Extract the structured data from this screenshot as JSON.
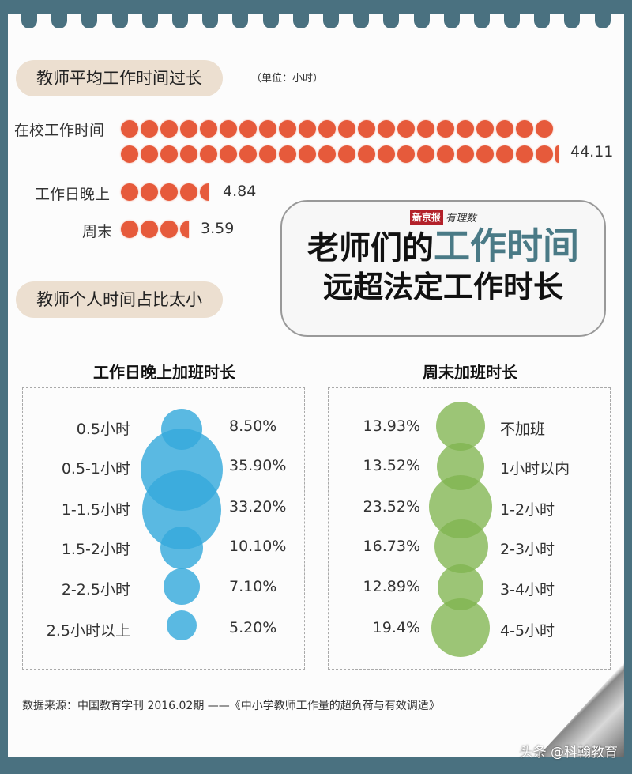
{
  "section1": {
    "pill": "教师平均工作时间过长",
    "unit": "（单位：小时）",
    "rows": [
      {
        "label": "在校工作时间",
        "value": "44.11"
      },
      {
        "label": "工作日晚上",
        "value": "4.84"
      },
      {
        "label": "周末",
        "value": "3.59"
      }
    ]
  },
  "section2": {
    "pill": "教师个人时间占比太小"
  },
  "title_card": {
    "brand_box": "新京报",
    "brand_text": "有理数",
    "line1_prefix": "老师们的",
    "line1_highlight": "工作时间",
    "line2": "远超法定工作时长"
  },
  "left_chart": {
    "title": "工作日晚上加班时长",
    "rows": [
      {
        "label": "0.5小时",
        "value": "8.50%"
      },
      {
        "label": "0.5-1小时",
        "value": "35.90%"
      },
      {
        "label": "1-1.5小时",
        "value": "33.20%"
      },
      {
        "label": "1.5-2小时",
        "value": "10.10%"
      },
      {
        "label": "2-2.5小时",
        "value": "7.10%"
      },
      {
        "label": "2.5小时以上",
        "value": "5.20%"
      }
    ]
  },
  "right_chart": {
    "title": "周末加班时长",
    "rows": [
      {
        "value": "13.93%",
        "label": "不加班"
      },
      {
        "value": "13.52%",
        "label": "1小时以内"
      },
      {
        "value": "23.52%",
        "label": "1-2小时"
      },
      {
        "value": "16.73%",
        "label": "2-3小时"
      },
      {
        "value": "12.89%",
        "label": "3-4小时"
      },
      {
        "value": "19.4%",
        "label": "4-5小时"
      }
    ]
  },
  "footer": {
    "source": "数据来源：中国教育学刊 2016.02期 ——《中小学教师工作量的超负荷与有效调适》",
    "watermark": "头条 @科翰教育"
  },
  "colors": {
    "frame": "#4a7180",
    "dot": "#e65a3b",
    "pill": "#ecdfd0",
    "blue_bubble": "#36aadc",
    "green_bubble": "#80b550",
    "highlight_text": "#4a7a86"
  },
  "chart_data": [
    {
      "type": "pictograph",
      "title": "教师平均工作时间过长",
      "unit": "小时",
      "categories": [
        "在校工作时间",
        "工作日晚上",
        "周末"
      ],
      "values": [
        44.11,
        4.84,
        3.59
      ]
    },
    {
      "type": "bubble",
      "title": "工作日晚上加班时长",
      "categories": [
        "0.5小时",
        "0.5-1小时",
        "1-1.5小时",
        "1.5-2小时",
        "2-2.5小时",
        "2.5小时以上"
      ],
      "values": [
        8.5,
        35.9,
        33.2,
        10.1,
        7.1,
        5.2
      ],
      "unit": "%"
    },
    {
      "type": "bubble",
      "title": "周末加班时长",
      "categories": [
        "不加班",
        "1小时以内",
        "1-2小时",
        "2-3小时",
        "3-4小时",
        "4-5小时"
      ],
      "values": [
        13.93,
        13.52,
        23.52,
        16.73,
        12.89,
        19.4
      ],
      "unit": "%"
    }
  ]
}
